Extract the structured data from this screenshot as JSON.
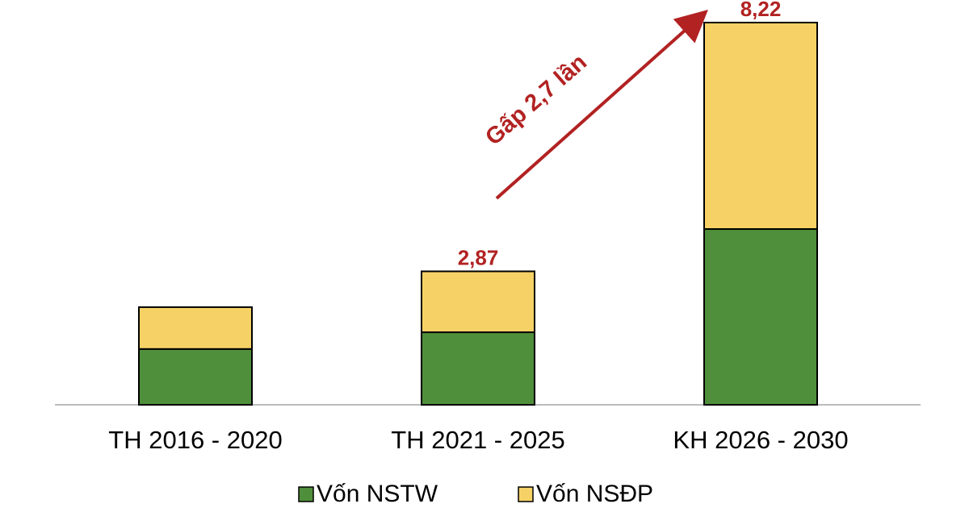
{
  "chart_data": {
    "type": "stacked_bar",
    "categories": [
      "TH 2016 - 2020",
      "TH 2021 - 2025",
      "KH 2026 - 2030"
    ],
    "series": [
      {
        "name": "Vốn NSTW",
        "color": "#4f8f3b",
        "values": [
          1.2,
          1.56,
          3.78
        ]
      },
      {
        "name": "Vốn NSĐP",
        "color": "#f6d266",
        "values": [
          0.9,
          1.31,
          4.44
        ]
      }
    ],
    "totals": [
      null,
      2.87,
      8.22
    ],
    "total_labels": [
      null,
      "2,87",
      "8,22"
    ],
    "annotation": "Gấp 2,7 lần"
  }
}
